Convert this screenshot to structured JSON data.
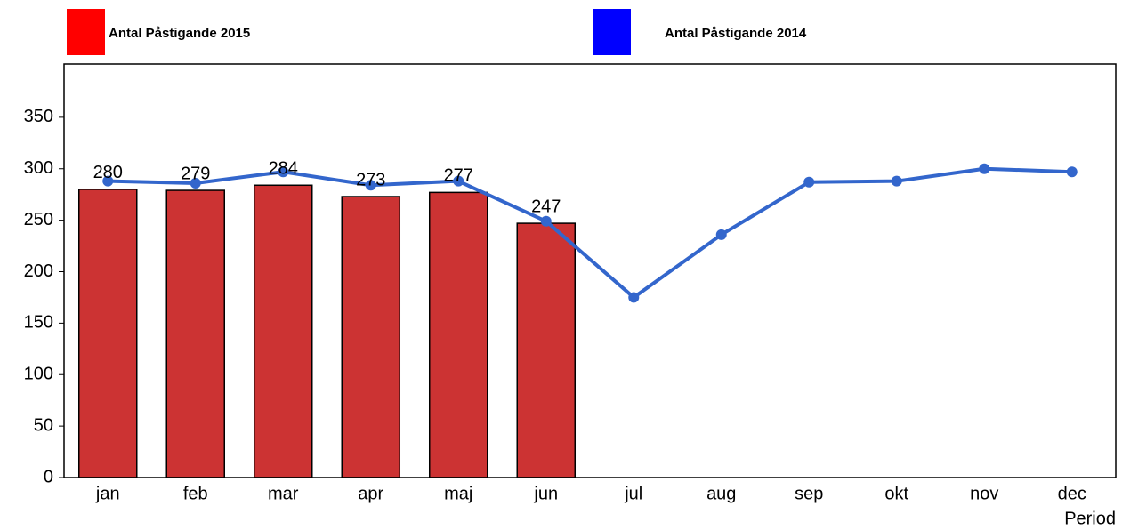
{
  "chart_data": {
    "type": "bar-line",
    "x_label": "Period",
    "categories": [
      "jan",
      "feb",
      "mar",
      "apr",
      "maj",
      "jun",
      "jul",
      "aug",
      "sep",
      "okt",
      "nov",
      "dec"
    ],
    "series": [
      {
        "name": "Antal Påstigande 2015",
        "type": "bar",
        "color": "#cc3333",
        "legend_color": "#ff0000",
        "values": [
          280,
          279,
          284,
          273,
          277,
          247,
          null,
          null,
          null,
          null,
          null,
          null
        ],
        "data_labels": true
      },
      {
        "name": "Antal Påstigande 2014",
        "type": "line",
        "color": "#3366cc",
        "legend_color": "#0000ff",
        "values": [
          288,
          286,
          297,
          284,
          288,
          249,
          175,
          236,
          287,
          288,
          300,
          297
        ]
      }
    ],
    "ylim": [
      0,
      400
    ],
    "yticks": [
      0,
      50,
      100,
      150,
      200,
      250,
      300,
      350
    ],
    "grid": false
  }
}
